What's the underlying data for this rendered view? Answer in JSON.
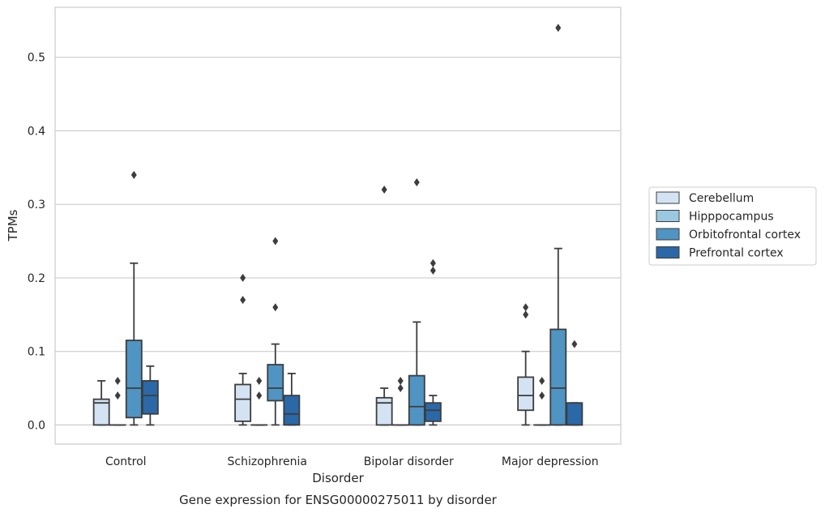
{
  "caption": "Gene expression for ENSG00000275011 by disorder",
  "chart_data": {
    "type": "boxplot",
    "title": "",
    "xlabel": "Disorder",
    "ylabel": "TPMs",
    "categories": [
      "Control",
      "Schizophrenia",
      "Bipolar disorder",
      "Major depression"
    ],
    "ylim": [
      -0.026,
      0.568
    ],
    "yticks": [
      0.0,
      0.1,
      0.2,
      0.3,
      0.4,
      0.5
    ],
    "ytick_labels": [
      "0.0",
      "0.1",
      "0.2",
      "0.3",
      "0.4",
      "0.5"
    ],
    "grid": "horizontal",
    "legend_position": "right",
    "series": [
      {
        "name": "Cerebellum",
        "color": "#d4e3f3",
        "boxes": [
          {
            "whisker_low": 0.0,
            "q1": 0.0,
            "median": 0.03,
            "q3": 0.035,
            "whisker_high": 0.06,
            "outliers": []
          },
          {
            "whisker_low": 0.0,
            "q1": 0.005,
            "median": 0.035,
            "q3": 0.055,
            "whisker_high": 0.07,
            "outliers": [
              0.17,
              0.2
            ]
          },
          {
            "whisker_low": 0.0,
            "q1": 0.0,
            "median": 0.03,
            "q3": 0.037,
            "whisker_high": 0.05,
            "outliers": [
              0.32
            ]
          },
          {
            "whisker_low": 0.0,
            "q1": 0.02,
            "median": 0.04,
            "q3": 0.065,
            "whisker_high": 0.1,
            "outliers": [
              0.15,
              0.16
            ]
          }
        ]
      },
      {
        "name": "Hipppocampus",
        "color": "#9ac8e0",
        "boxes": [
          {
            "whisker_low": 0.0,
            "q1": 0.0,
            "median": 0.0,
            "q3": 0.0,
            "whisker_high": 0.0,
            "outliers": [
              0.04,
              0.06
            ]
          },
          {
            "whisker_low": 0.0,
            "q1": 0.0,
            "median": 0.0,
            "q3": 0.0,
            "whisker_high": 0.0,
            "outliers": [
              0.04,
              0.06
            ]
          },
          {
            "whisker_low": 0.0,
            "q1": 0.0,
            "median": 0.0,
            "q3": 0.0,
            "whisker_high": 0.0,
            "outliers": [
              0.05,
              0.06
            ]
          },
          {
            "whisker_low": 0.0,
            "q1": 0.0,
            "median": 0.0,
            "q3": 0.0,
            "whisker_high": 0.0,
            "outliers": [
              0.04,
              0.06
            ]
          }
        ]
      },
      {
        "name": "Orbitofrontal cortex",
        "color": "#4f94c3",
        "boxes": [
          {
            "whisker_low": 0.0,
            "q1": 0.01,
            "median": 0.05,
            "q3": 0.115,
            "whisker_high": 0.22,
            "outliers": [
              0.34
            ]
          },
          {
            "whisker_low": 0.0,
            "q1": 0.033,
            "median": 0.05,
            "q3": 0.082,
            "whisker_high": 0.11,
            "outliers": [
              0.16,
              0.25
            ]
          },
          {
            "whisker_low": 0.0,
            "q1": 0.0,
            "median": 0.025,
            "q3": 0.067,
            "whisker_high": 0.14,
            "outliers": [
              0.33
            ]
          },
          {
            "whisker_low": 0.0,
            "q1": 0.0,
            "median": 0.05,
            "q3": 0.13,
            "whisker_high": 0.24,
            "outliers": [
              0.54
            ]
          }
        ]
      },
      {
        "name": "Prefrontal cortex",
        "color": "#2a68a7",
        "boxes": [
          {
            "whisker_low": 0.0,
            "q1": 0.015,
            "median": 0.04,
            "q3": 0.06,
            "whisker_high": 0.08,
            "outliers": []
          },
          {
            "whisker_low": 0.0,
            "q1": 0.0,
            "median": 0.015,
            "q3": 0.04,
            "whisker_high": 0.07,
            "outliers": []
          },
          {
            "whisker_low": 0.0,
            "q1": 0.005,
            "median": 0.02,
            "q3": 0.03,
            "whisker_high": 0.04,
            "outliers": [
              0.21,
              0.22
            ]
          },
          {
            "whisker_low": 0.0,
            "q1": 0.0,
            "median": 0.0,
            "q3": 0.03,
            "whisker_high": 0.03,
            "outliers": [
              0.11
            ]
          }
        ]
      }
    ]
  }
}
